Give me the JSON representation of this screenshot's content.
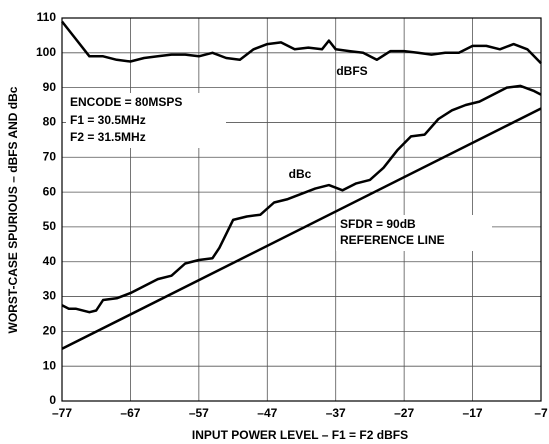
{
  "chart_data": {
    "type": "line",
    "x_label": "INPUT POWER LEVEL – F1 = F2 dBFS",
    "y_label": "WORST-CASE SPURIOUS – dBFS AND dBc",
    "xlim": [
      -77,
      -7
    ],
    "ylim": [
      0,
      110
    ],
    "xticks": [
      {
        "value": -77,
        "label": "–77"
      },
      {
        "value": -67,
        "label": "–67"
      },
      {
        "value": -57,
        "label": "–57"
      },
      {
        "value": -47,
        "label": "–47"
      },
      {
        "value": -37,
        "label": "–37"
      },
      {
        "value": -27,
        "label": "–27"
      },
      {
        "value": -17,
        "label": "–17"
      },
      {
        "value": -7,
        "label": "–7"
      }
    ],
    "yticks": [
      0,
      10,
      20,
      30,
      40,
      50,
      60,
      70,
      80,
      90,
      100,
      110
    ],
    "grid": true,
    "series": [
      {
        "name": "dBFS",
        "color": "#000000",
        "x": [
          -77,
          -75,
          -73,
          -71,
          -69,
          -67,
          -65,
          -63,
          -61,
          -59,
          -57,
          -55,
          -53,
          -51,
          -49,
          -47,
          -45,
          -43,
          -41,
          -39,
          -38,
          -37,
          -35,
          -33,
          -31,
          -29,
          -27,
          -25,
          -23,
          -21,
          -19,
          -17,
          -15,
          -13,
          -11,
          -9,
          -7
        ],
        "values": [
          109,
          104,
          99,
          99,
          98,
          97.5,
          98.5,
          99,
          99.5,
          99.5,
          99,
          100,
          98.5,
          98,
          101,
          102.5,
          103,
          101,
          101.5,
          101,
          103.5,
          101,
          100.5,
          100,
          98,
          100.5,
          100.5,
          100,
          99.5,
          100,
          100,
          102,
          102,
          101,
          102.5,
          101,
          97
        ]
      },
      {
        "name": "dBc",
        "color": "#000000",
        "x": [
          -77,
          -76,
          -75,
          -73,
          -72,
          -71,
          -69,
          -67,
          -65,
          -63,
          -61,
          -59,
          -57,
          -55,
          -54,
          -52,
          -50,
          -48,
          -46,
          -44,
          -42,
          -40,
          -38,
          -36,
          -34,
          -32,
          -30,
          -28,
          -26,
          -24,
          -22,
          -20,
          -18,
          -16,
          -14,
          -12,
          -10,
          -8,
          -7
        ],
        "values": [
          27.5,
          26.5,
          26.5,
          25.5,
          26,
          29,
          29.5,
          31,
          33,
          35,
          36,
          39.5,
          40.5,
          41,
          44,
          52,
          53,
          53.5,
          57,
          58,
          59.5,
          61,
          62,
          60.5,
          62.5,
          63.5,
          67,
          72,
          76,
          76.5,
          81,
          83.5,
          85,
          86,
          88,
          90,
          90.5,
          89,
          88
        ]
      },
      {
        "name": "SFDR = 90dB REFERENCE LINE",
        "color": "#000000",
        "x": [
          -77,
          -7
        ],
        "values": [
          15,
          84
        ]
      }
    ],
    "annotations": [
      "dBFS",
      "ENCODE = 80MSPS",
      "F1 = 30.5MHz",
      "F2 = 31.5MHz",
      "dBc",
      "SFDR = 90dB",
      "REFERENCE LINE"
    ]
  }
}
